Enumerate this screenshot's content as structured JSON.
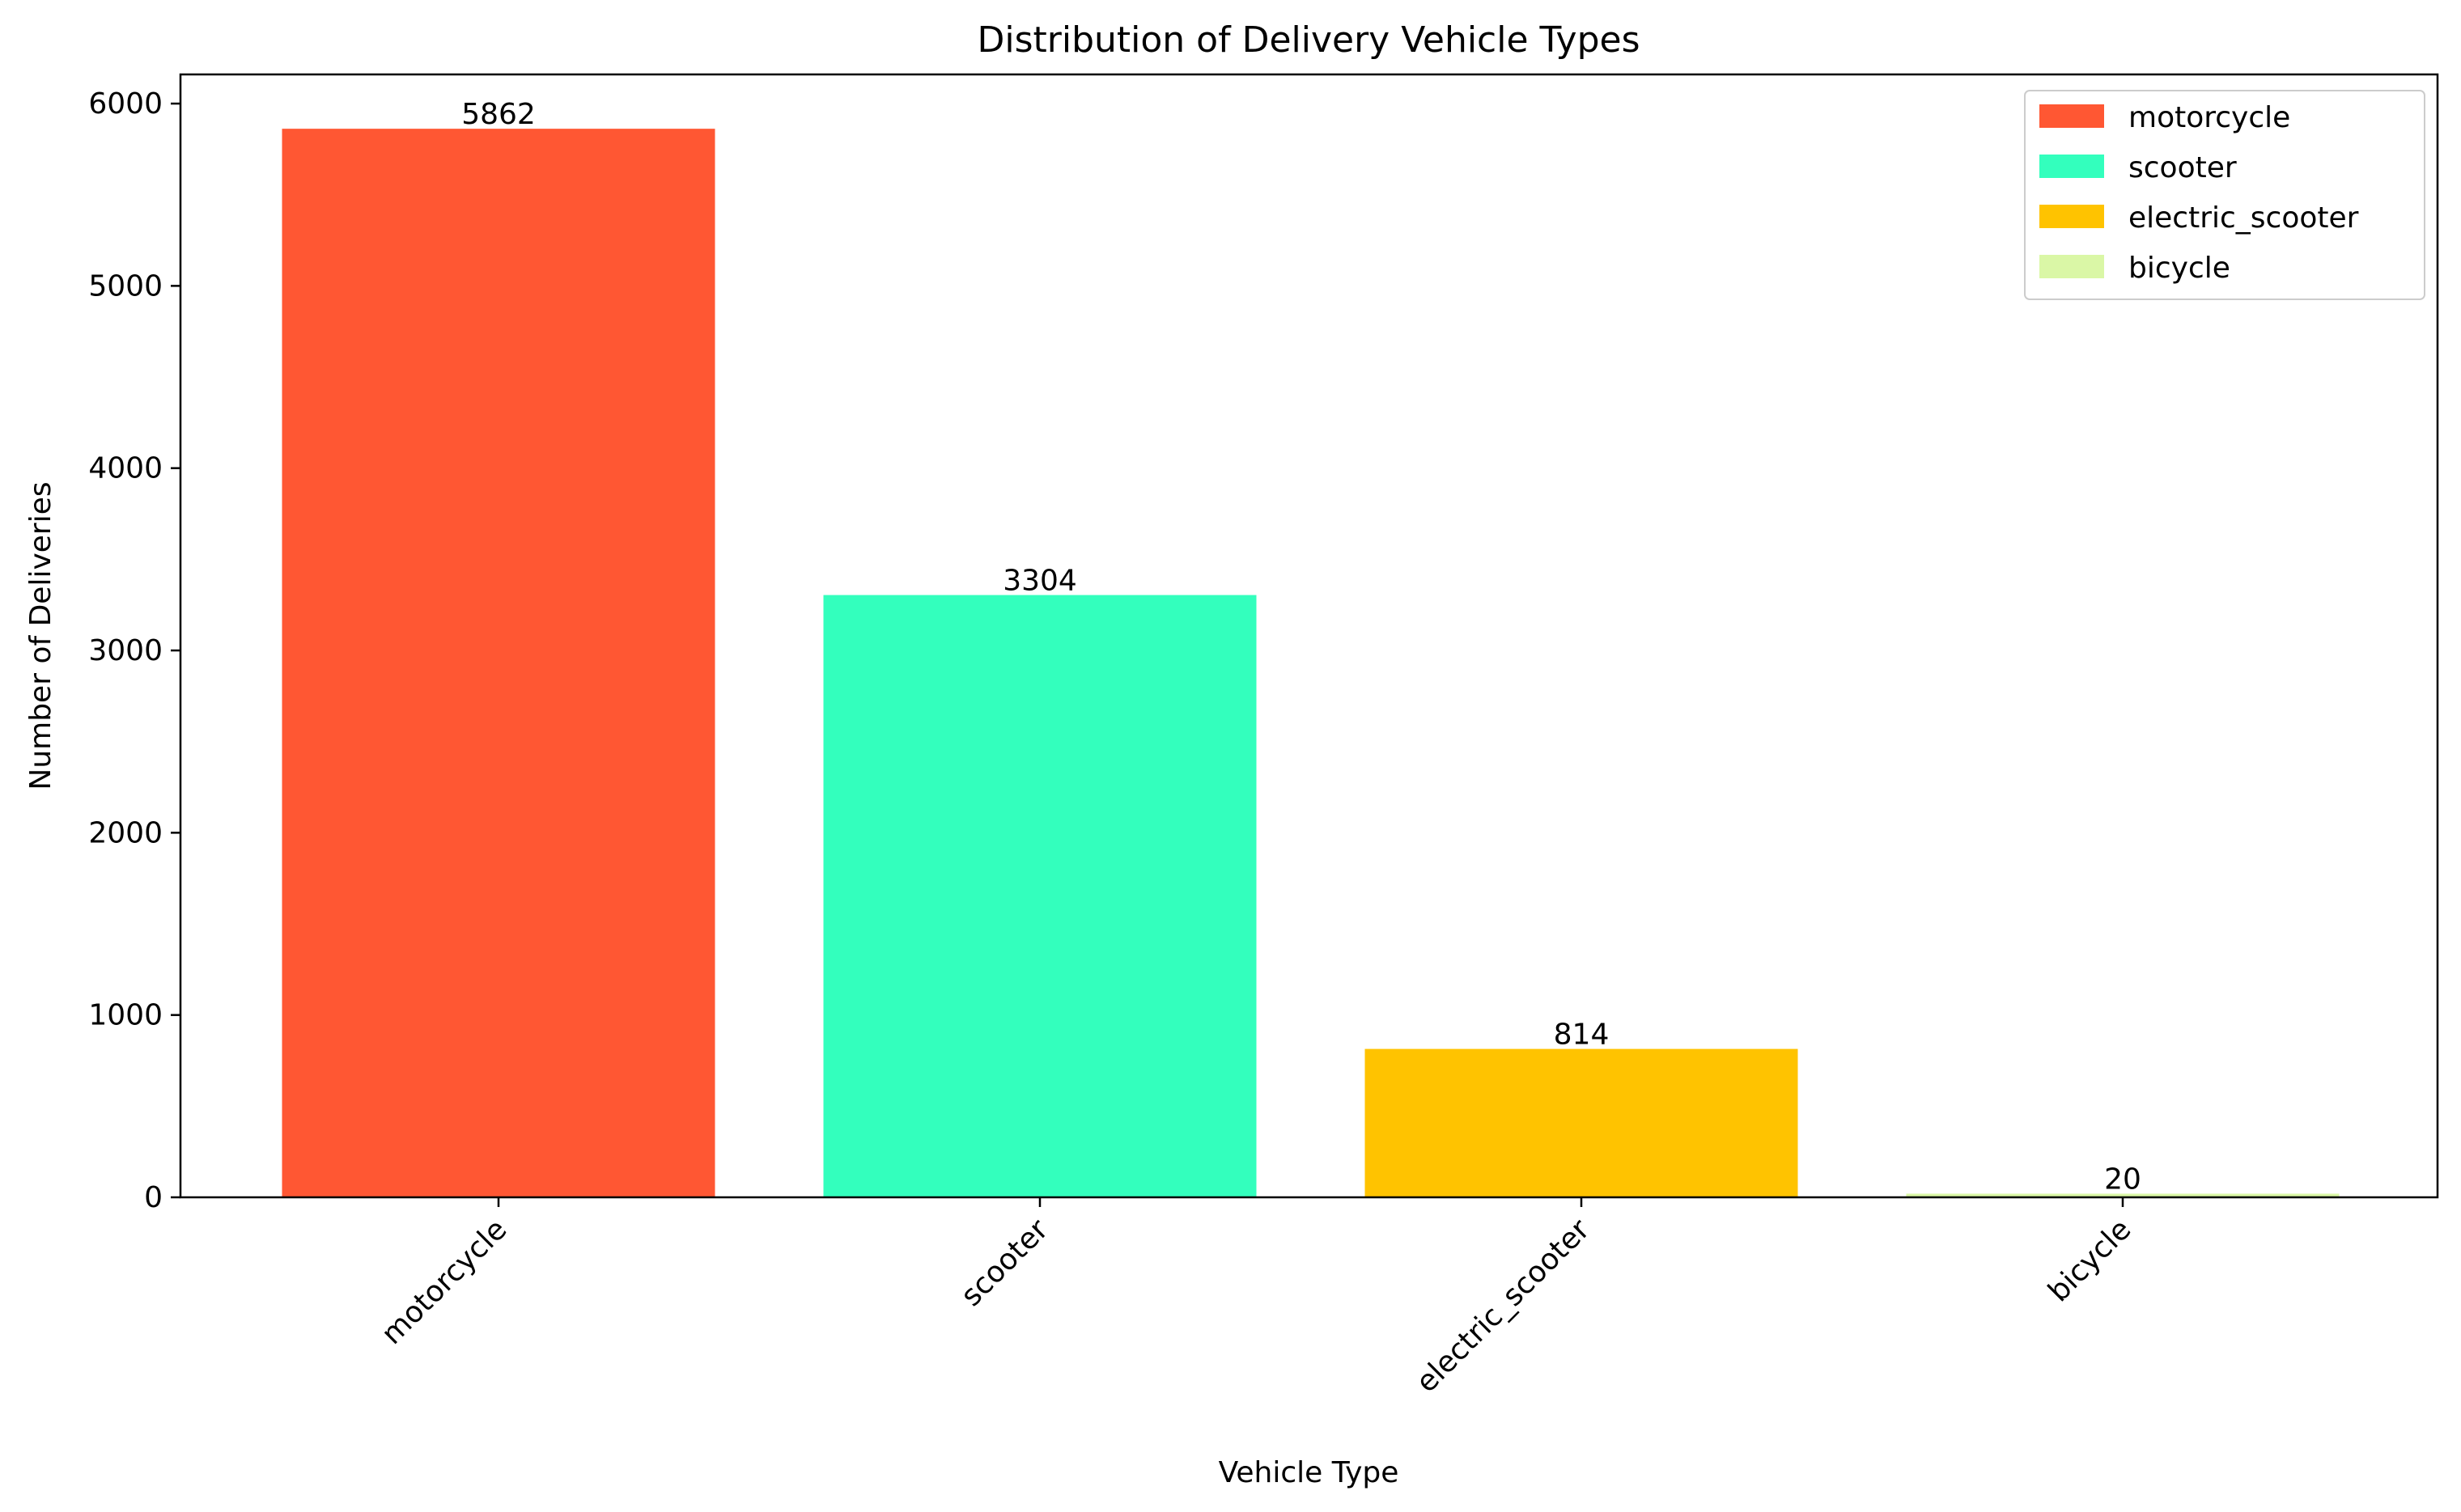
{
  "chart_data": {
    "type": "bar",
    "title": "Distribution of Delivery Vehicle Types",
    "xlabel": "Vehicle Type",
    "ylabel": "Number of Deliveries",
    "categories": [
      "motorcycle",
      "scooter",
      "electric_scooter",
      "bicycle"
    ],
    "values": [
      5862,
      3304,
      814,
      20
    ],
    "colors": [
      "#FF5733",
      "#33FFBD",
      "#FFC300",
      "#DAF7A6"
    ],
    "ylim": [
      0,
      6160
    ],
    "yticks": [
      0,
      1000,
      2000,
      3000,
      4000,
      5000,
      6000
    ],
    "ytick_labels": [
      "0",
      "1000",
      "2000",
      "3000",
      "4000",
      "5000",
      "6000"
    ],
    "xtick_rotation": 45,
    "grid": false,
    "legend": {
      "position": "top-right",
      "entries": [
        "motorcycle",
        "scooter",
        "electric_scooter",
        "bicycle"
      ]
    },
    "data_labels": [
      "5862",
      "3304",
      "814",
      "20"
    ]
  }
}
